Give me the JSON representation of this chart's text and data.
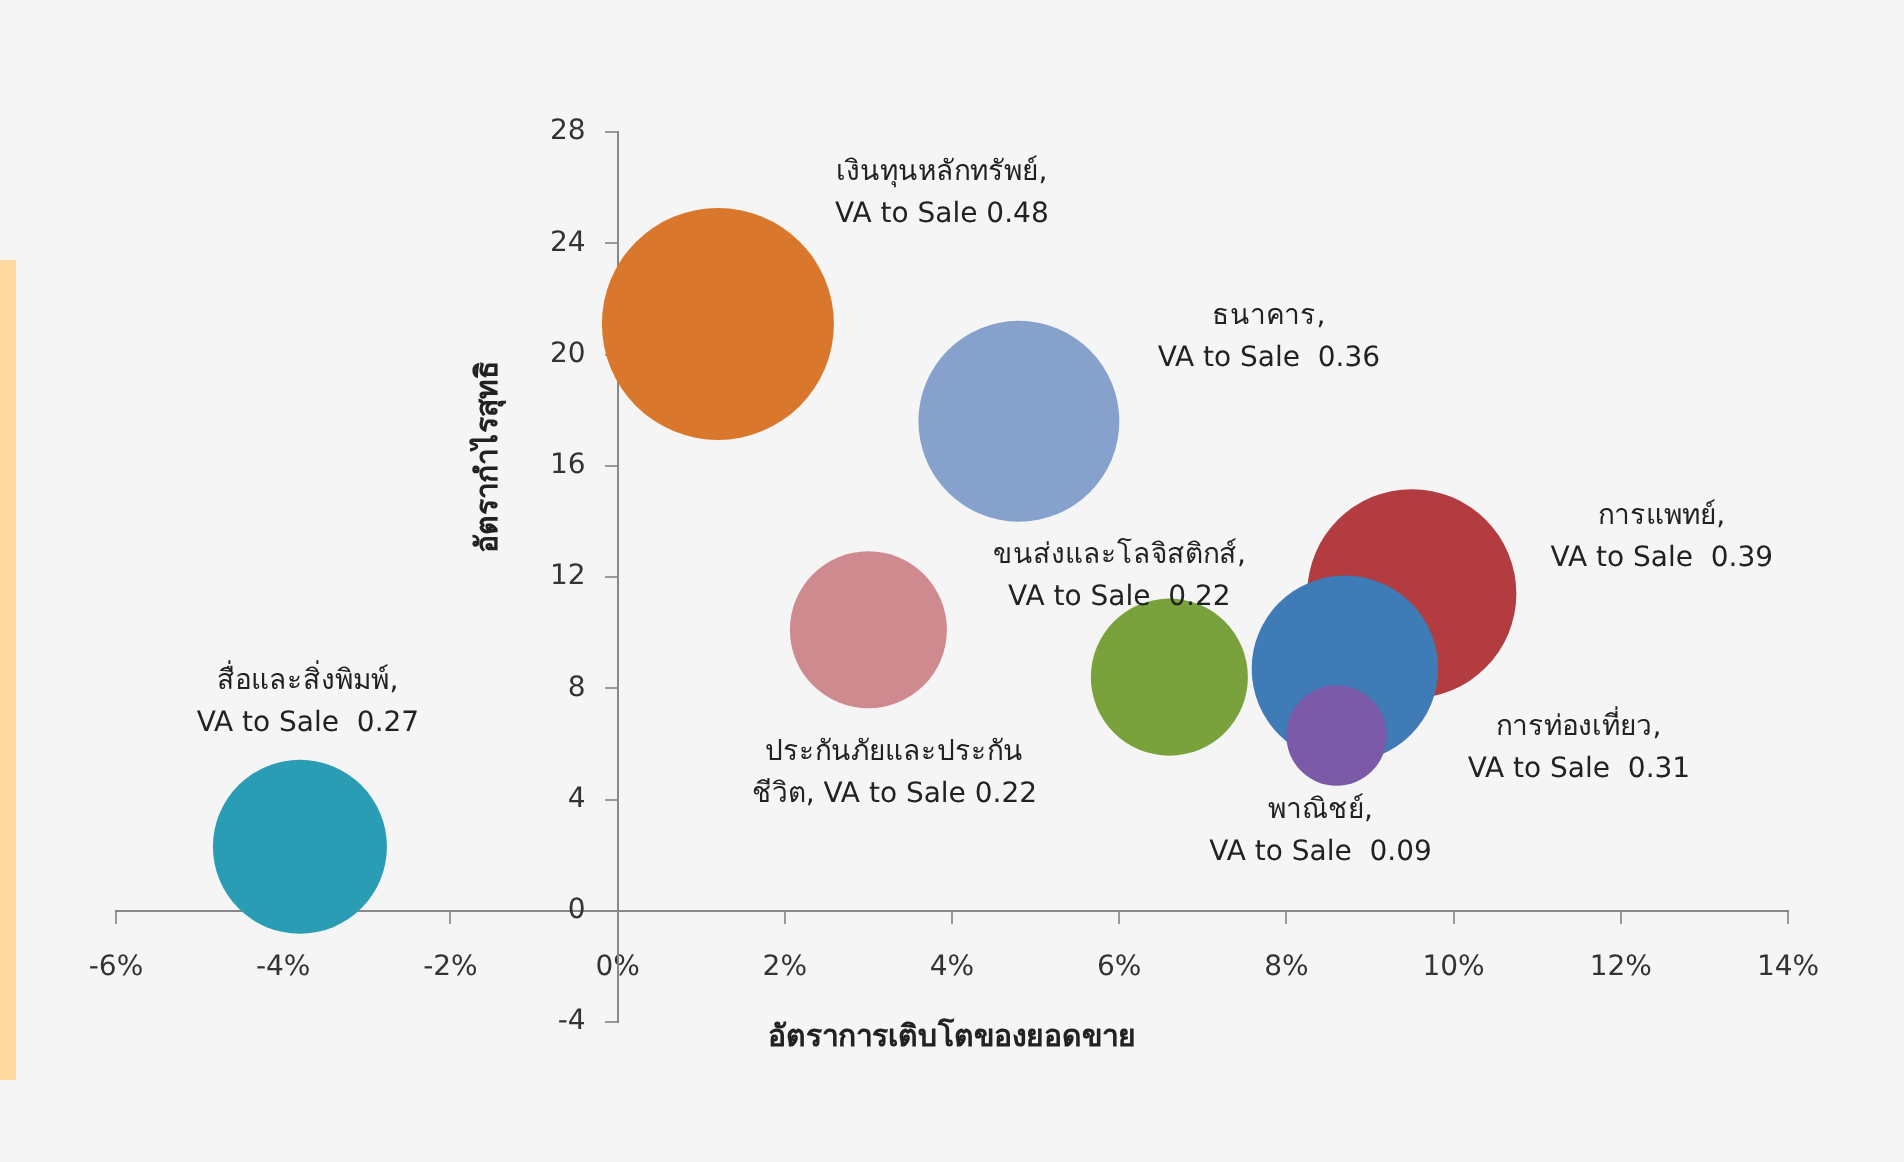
{
  "chart_data": {
    "type": "bubble",
    "xlabel": "อัตราการเติบโตของยอดขาย",
    "ylabel": "อัตรากำไรสุทธิ",
    "x": [
      1.2,
      4.8,
      9.5,
      8.7,
      8.6,
      6.6,
      3.0,
      -3.8
    ],
    "values": [
      21.1,
      17.6,
      11.4,
      8.7,
      6.3,
      8.4,
      10.1,
      2.3
    ],
    "sizes": [
      1,
      0.75,
      0.8125,
      0.646,
      0.1875,
      0.458,
      0.458,
      0.5625
    ],
    "colors": [
      "#d9782c",
      "#86a2cc",
      "#b23c40",
      "#3f7bb6",
      "#7b5ba8",
      "#79a23c",
      "#cf8a90",
      "#2a9db4"
    ],
    "xlim": [
      -6,
      14
    ],
    "xticks": [
      {
        "value": -6,
        "label": "-6%"
      },
      {
        "value": -4,
        "label": "-4%"
      },
      {
        "value": -2,
        "label": "-2%"
      },
      {
        "value": 0,
        "label": "0%"
      },
      {
        "value": 2,
        "label": "2%"
      },
      {
        "value": 4,
        "label": "4%"
      },
      {
        "value": 6,
        "label": "6%"
      },
      {
        "value": 8,
        "label": "8%"
      },
      {
        "value": 10,
        "label": "10%"
      },
      {
        "value": 12,
        "label": "12%"
      },
      {
        "value": 14,
        "label": "14%"
      }
    ],
    "ylim": [
      -4,
      28
    ],
    "yticks": [
      -4,
      0,
      4,
      8,
      12,
      16,
      20,
      24,
      28
    ],
    "grid": false,
    "legend": false,
    "annotations": [
      "เงินทุนหลักทรัพย์,\nVA to Sale 0.48",
      "ธนาคาร,\nVA to Sale  0.36",
      "การแพทย์,\nVA to Sale  0.39",
      "การท่องเที่ยว,\nVA to Sale  0.31",
      "พาณิชย์,\nVA to Sale  0.09",
      "ขนส่งและโลจิสติกส์,\nVA to Sale  0.22",
      "ประกันภัยและประกัน\nชีวิต, VA to Sale 0.22",
      "สื่อและสิ่งพิมพ์,\nVA to Sale  0.27"
    ]
  }
}
